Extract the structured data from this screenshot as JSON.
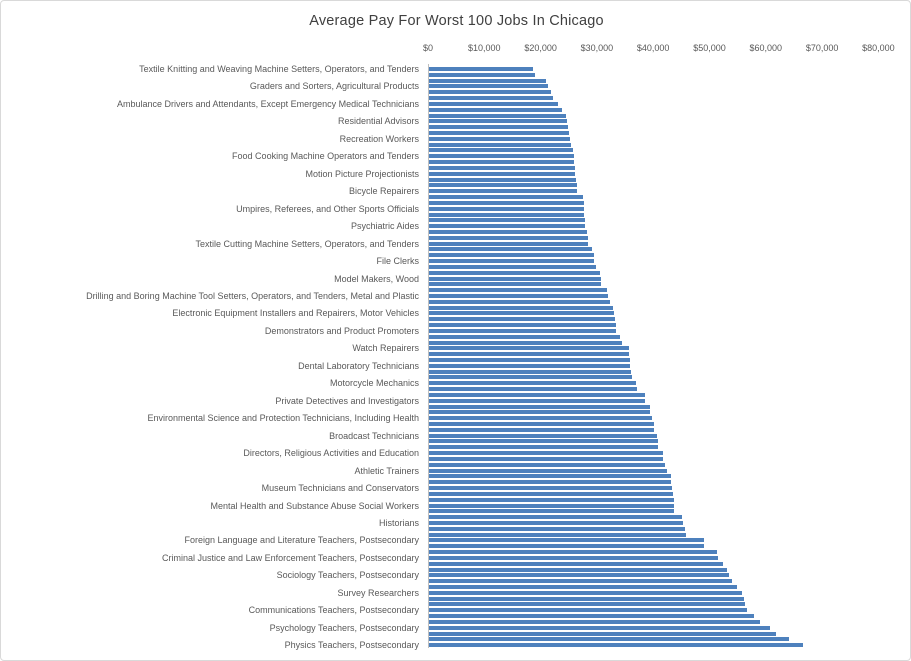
{
  "chart_data": {
    "type": "bar",
    "orientation": "horizontal",
    "title": "Average Pay For Worst 100 Jobs In Chicago",
    "value_axis": {
      "position": "top",
      "min": 0,
      "max": 80000,
      "tick_interval": 10000,
      "tick_values": [
        0,
        10000,
        20000,
        30000,
        40000,
        50000,
        60000,
        70000,
        80000
      ],
      "tick_labels": [
        "$0",
        "$10,000",
        "$20,000",
        "$30,000",
        "$40,000",
        "$50,000",
        "$60,000",
        "$70,000",
        "$80,000"
      ]
    },
    "category_axis": {
      "n_bars": 100,
      "label_interval": 3,
      "labels": [
        "Textile Knitting and Weaving Machine Setters, Operators, and Tenders",
        "Graders and Sorters, Agricultural Products",
        "Ambulance Drivers and Attendants, Except Emergency Medical Technicians",
        "Residential Advisors",
        "Recreation Workers",
        "Food Cooking Machine Operators and Tenders",
        "Motion Picture Projectionists",
        "Bicycle Repairers",
        "Umpires, Referees, and Other Sports Officials",
        "Psychiatric Aides",
        "Textile Cutting Machine Setters, Operators, and Tenders",
        "File Clerks",
        "Model Makers, Wood",
        "Drilling and Boring Machine Tool Setters, Operators, and Tenders, Metal and Plastic",
        "Electronic Equipment Installers and Repairers, Motor Vehicles",
        "Demonstrators and Product Promoters",
        "Watch Repairers",
        "Dental Laboratory Technicians",
        "Motorcycle Mechanics",
        "Private Detectives and Investigators",
        "Environmental Science and Protection Technicians, Including Health",
        "Broadcast Technicians",
        "Directors, Religious Activities and Education",
        "Athletic Trainers",
        "Museum Technicians and Conservators",
        "Mental Health and Substance Abuse Social Workers",
        "Historians",
        "Foreign Language and Literature Teachers, Postsecondary",
        "Criminal Justice and Law Enforcement Teachers, Postsecondary",
        "Sociology Teachers, Postsecondary",
        "Survey Researchers",
        "Communications Teachers, Postsecondary",
        "Psychology Teachers, Postsecondary",
        "Physics Teachers, Postsecondary"
      ]
    },
    "values": [
      18400,
      18900,
      20700,
      21200,
      21700,
      22100,
      23000,
      23700,
      24400,
      24600,
      24700,
      24800,
      25100,
      25300,
      25500,
      25700,
      25800,
      25900,
      26000,
      26100,
      26200,
      26200,
      27400,
      27500,
      27500,
      27600,
      27700,
      27700,
      28100,
      28200,
      28200,
      29000,
      29300,
      29300,
      29600,
      30400,
      30600,
      30600,
      31600,
      31800,
      32200,
      32600,
      32900,
      33000,
      33200,
      33300,
      34000,
      34300,
      35600,
      35600,
      35700,
      35700,
      35800,
      36000,
      36800,
      36900,
      38300,
      38400,
      39200,
      39300,
      39600,
      39900,
      40000,
      40500,
      40600,
      40700,
      41500,
      41600,
      41900,
      42300,
      42900,
      43000,
      43200,
      43300,
      43500,
      43600,
      43600,
      44900,
      45100,
      45500,
      45600,
      48800,
      48900,
      51200,
      51400,
      52300,
      53000,
      53200,
      53900,
      54700,
      55600,
      55900,
      56200,
      56400,
      57700,
      58800,
      60500,
      61700,
      63900,
      66400
    ],
    "legend": "none",
    "gridlines": "off",
    "colors": {
      "bar": "#4E81BD",
      "labels": "#595959",
      "title": "#404040",
      "axis_line": "#BFBFBF",
      "chart_border": "#D9D9D9"
    }
  }
}
